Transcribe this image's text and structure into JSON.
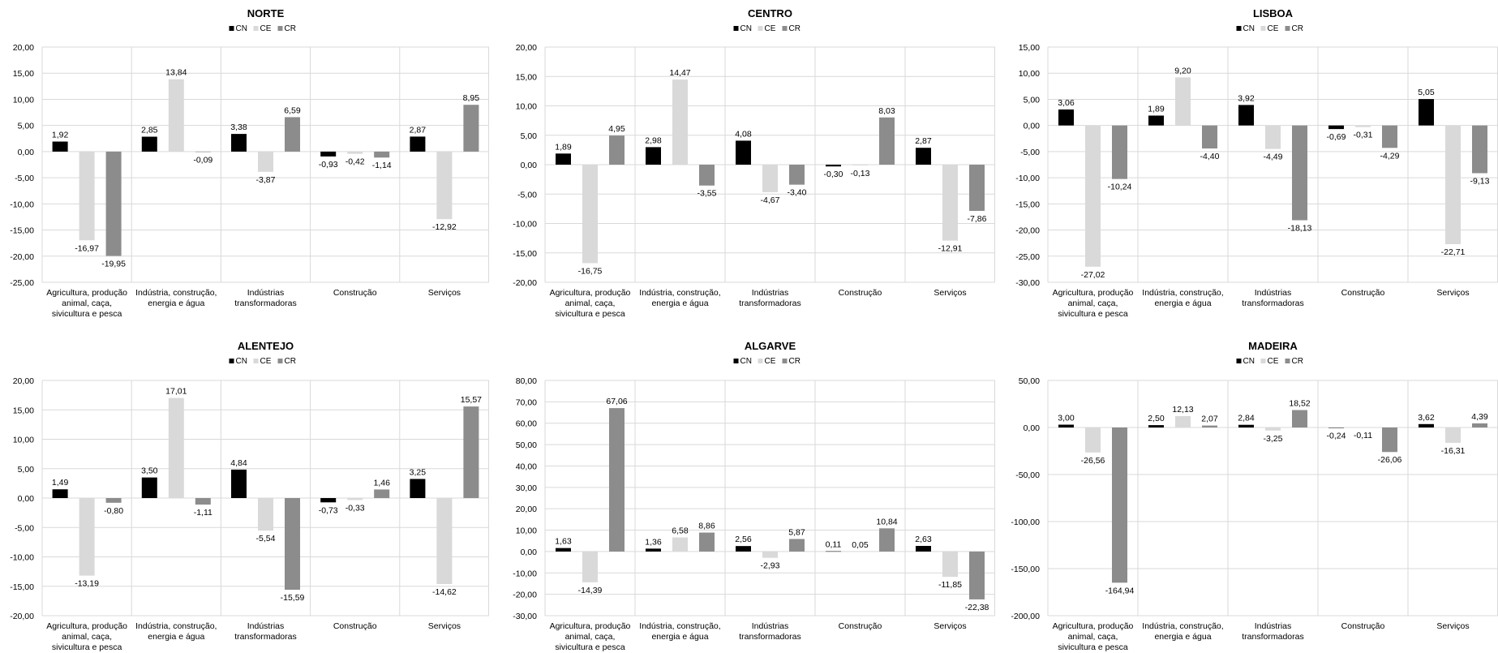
{
  "legend_labels": [
    "CN",
    "CE",
    "CR"
  ],
  "colors": {
    "CN": "#000000",
    "CE": "#d9d9d9",
    "CR": "#8c8c8c",
    "grid": "#d9d9d9",
    "frame": "#d9d9d9"
  },
  "categories": [
    [
      "Agricultura, produção",
      "animal, caça,",
      "sivicultura e pesca"
    ],
    [
      "Indústria, construção,",
      "energia e água"
    ],
    [
      "Indústrias",
      "transformadoras"
    ],
    [
      "Construção"
    ],
    [
      "Serviços"
    ]
  ],
  "chart_data": [
    {
      "type": "bar",
      "title": "NORTE",
      "ylim": [
        -25,
        20
      ],
      "ystep": 5,
      "ytick_labels": [
        "20,00",
        "15,00",
        "10,00",
        "5,00",
        "0,00",
        "-5,00",
        "-10,00",
        "-15,00",
        "-20,00",
        "-25,00"
      ],
      "series": [
        {
          "name": "CN",
          "values": [
            1.92,
            2.85,
            3.38,
            -0.93,
            2.87
          ],
          "labels": [
            "1,92",
            "2,85",
            "3,38",
            "-0,93",
            "2,87"
          ]
        },
        {
          "name": "CE",
          "values": [
            -16.97,
            13.84,
            -3.87,
            -0.42,
            -12.92
          ],
          "labels": [
            "-16,97",
            "13,84",
            "-3,87",
            "-0,42",
            "-12,92"
          ]
        },
        {
          "name": "CR",
          "values": [
            -19.95,
            -0.09,
            6.59,
            -1.14,
            8.95
          ],
          "labels": [
            "-19,95",
            "-0,09",
            "6,59",
            "-1,14",
            "8,95"
          ]
        }
      ]
    },
    {
      "type": "bar",
      "title": "CENTRO",
      "ylim": [
        -20,
        20
      ],
      "ystep": 5,
      "ytick_labels": [
        "20,00",
        "15,00",
        "10,00",
        "5,00",
        "0,00",
        "-5,00",
        "-10,00",
        "-15,00",
        "-20,00"
      ],
      "series": [
        {
          "name": "CN",
          "values": [
            1.89,
            2.98,
            4.08,
            -0.3,
            2.87
          ],
          "labels": [
            "1,89",
            "2,98",
            "4,08",
            "-0,30",
            "2,87"
          ]
        },
        {
          "name": "CE",
          "values": [
            -16.75,
            14.47,
            -4.67,
            -0.13,
            -12.91
          ],
          "labels": [
            "-16,75",
            "14,47",
            "-4,67",
            "-0,13",
            "-12,91"
          ]
        },
        {
          "name": "CR",
          "values": [
            4.95,
            -3.55,
            -3.4,
            8.03,
            -7.86
          ],
          "labels": [
            "4,95",
            "-3,55",
            "-3,40",
            "8,03",
            "-7,86"
          ]
        }
      ]
    },
    {
      "type": "bar",
      "title": "LISBOA",
      "ylim": [
        -30,
        15
      ],
      "ystep": 5,
      "ytick_labels": [
        "15,00",
        "10,00",
        "5,00",
        "0,00",
        "-5,00",
        "-10,00",
        "-15,00",
        "-20,00",
        "-25,00",
        "-30,00"
      ],
      "series": [
        {
          "name": "CN",
          "values": [
            3.06,
            1.89,
            3.92,
            -0.69,
            5.05
          ],
          "labels": [
            "3,06",
            "1,89",
            "3,92",
            "-0,69",
            "5,05"
          ]
        },
        {
          "name": "CE",
          "values": [
            -27.02,
            9.2,
            -4.49,
            -0.31,
            -22.71
          ],
          "labels": [
            "-27,02",
            "9,20",
            "-4,49",
            "-0,31",
            "-22,71"
          ]
        },
        {
          "name": "CR",
          "values": [
            -10.24,
            -4.4,
            -18.13,
            -4.29,
            -9.13
          ],
          "labels": [
            "-10,24",
            "-4,40",
            "-18,13",
            "-4,29",
            "-9,13"
          ]
        }
      ]
    },
    {
      "type": "bar",
      "title": "ALENTEJO",
      "ylim": [
        -20,
        20
      ],
      "ystep": 5,
      "ytick_labels": [
        "20,00",
        "15,00",
        "10,00",
        "5,00",
        "0,00",
        "-5,00",
        "-10,00",
        "-15,00",
        "-20,00"
      ],
      "series": [
        {
          "name": "CN",
          "values": [
            1.49,
            3.5,
            4.84,
            -0.73,
            3.25
          ],
          "labels": [
            "1,49",
            "3,50",
            "4,84",
            "-0,73",
            "3,25"
          ]
        },
        {
          "name": "CE",
          "values": [
            -13.19,
            17.01,
            -5.54,
            -0.33,
            -14.62
          ],
          "labels": [
            "-13,19",
            "17,01",
            "-5,54",
            "-0,33",
            "-14,62"
          ]
        },
        {
          "name": "CR",
          "values": [
            -0.8,
            -1.11,
            -15.59,
            1.46,
            15.57
          ],
          "labels": [
            "-0,80",
            "-1,11",
            "-15,59",
            "1,46",
            "15,57"
          ]
        }
      ]
    },
    {
      "type": "bar",
      "title": "ALGARVE",
      "ylim": [
        -30,
        80
      ],
      "ystep": 10,
      "ytick_labels": [
        "80,00",
        "70,00",
        "60,00",
        "50,00",
        "40,00",
        "30,00",
        "20,00",
        "10,00",
        "0,00",
        "-10,00",
        "-20,00",
        "-30,00"
      ],
      "series": [
        {
          "name": "CN",
          "values": [
            1.63,
            1.36,
            2.56,
            0.11,
            2.63
          ],
          "labels": [
            "1,63",
            "1,36",
            "2,56",
            "0,11",
            "2,63"
          ]
        },
        {
          "name": "CE",
          "values": [
            -14.39,
            6.58,
            -2.93,
            0.05,
            -11.85
          ],
          "labels": [
            "-14,39",
            "6,58",
            "-2,93",
            "0,05",
            "-11,85"
          ]
        },
        {
          "name": "CR",
          "values": [
            67.06,
            8.86,
            5.87,
            10.84,
            -22.38
          ],
          "labels": [
            "67,06",
            "8,86",
            "5,87",
            "10,84",
            "-22,38"
          ]
        }
      ]
    },
    {
      "type": "bar",
      "title": "MADEIRA",
      "ylim": [
        -200,
        50
      ],
      "ystep": 50,
      "ytick_labels": [
        "50,00",
        "0,00",
        "-50,00",
        "-100,00",
        "-150,00",
        "-200,00"
      ],
      "series": [
        {
          "name": "CN",
          "values": [
            3.0,
            2.5,
            2.84,
            -0.24,
            3.62
          ],
          "labels": [
            "3,00",
            "2,50",
            "2,84",
            "-0,24",
            "3,62"
          ]
        },
        {
          "name": "CE",
          "values": [
            -26.56,
            12.13,
            -3.25,
            -0.11,
            -16.31
          ],
          "labels": [
            "-26,56",
            "12,13",
            "-3,25",
            "-0,11",
            "-16,31"
          ]
        },
        {
          "name": "CR",
          "values": [
            -164.94,
            2.07,
            18.52,
            -26.06,
            4.39
          ],
          "labels": [
            "-164,94",
            "2,07",
            "18,52",
            "-26,06",
            "4,39"
          ]
        }
      ]
    }
  ]
}
